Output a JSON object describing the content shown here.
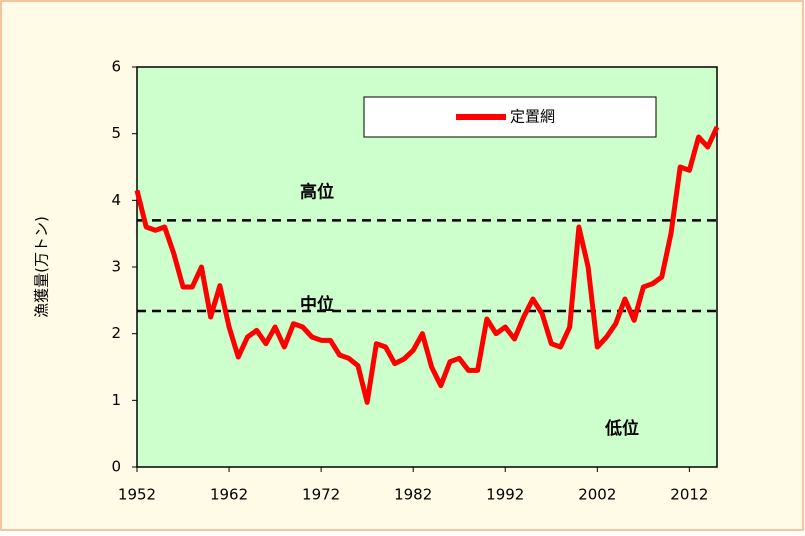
{
  "chart_data": {
    "type": "line",
    "ylabel": "漁獲量(万トン)",
    "x": [
      1952,
      1953,
      1954,
      1955,
      1956,
      1957,
      1958,
      1959,
      1960,
      1961,
      1962,
      1963,
      1964,
      1965,
      1966,
      1967,
      1968,
      1969,
      1970,
      1971,
      1972,
      1973,
      1974,
      1975,
      1976,
      1977,
      1978,
      1979,
      1980,
      1981,
      1982,
      1983,
      1984,
      1985,
      1986,
      1987,
      1988,
      1989,
      1990,
      1991,
      1992,
      1993,
      1994,
      1995,
      1996,
      1997,
      1998,
      1999,
      2000,
      2001,
      2002,
      2003,
      2004,
      2005,
      2006,
      2007,
      2008,
      2009,
      2010,
      2011,
      2012,
      2013,
      2014,
      2015
    ],
    "series": [
      {
        "name": "定置網",
        "color": "#ff0000",
        "values": [
          4.15,
          3.6,
          3.55,
          3.6,
          3.2,
          2.7,
          2.7,
          3.0,
          2.25,
          2.72,
          2.1,
          1.65,
          1.95,
          2.05,
          1.85,
          2.1,
          1.8,
          2.15,
          2.1,
          1.95,
          1.9,
          1.9,
          1.68,
          1.63,
          1.52,
          0.97,
          1.85,
          1.8,
          1.55,
          1.62,
          1.75,
          2.0,
          1.5,
          1.22,
          1.58,
          1.63,
          1.45,
          1.45,
          2.22,
          2.0,
          2.1,
          1.92,
          2.25,
          2.52,
          2.3,
          1.85,
          1.8,
          2.1,
          3.6,
          3.0,
          1.8,
          1.95,
          2.15,
          2.52,
          2.2,
          2.7,
          2.75,
          2.85,
          3.5,
          4.5,
          4.45,
          4.95,
          4.8,
          5.1
        ]
      }
    ],
    "xlim": [
      1952,
      2015
    ],
    "xticks": [
      1952,
      1962,
      1972,
      1982,
      1992,
      2002,
      2012
    ],
    "ylim": [
      0,
      6
    ],
    "yticks": [
      0,
      1,
      2,
      3,
      4,
      5,
      6
    ],
    "hlines": [
      3.7,
      2.34
    ],
    "zone_labels": [
      "高位",
      "中位",
      "低位"
    ],
    "legend": "top"
  }
}
